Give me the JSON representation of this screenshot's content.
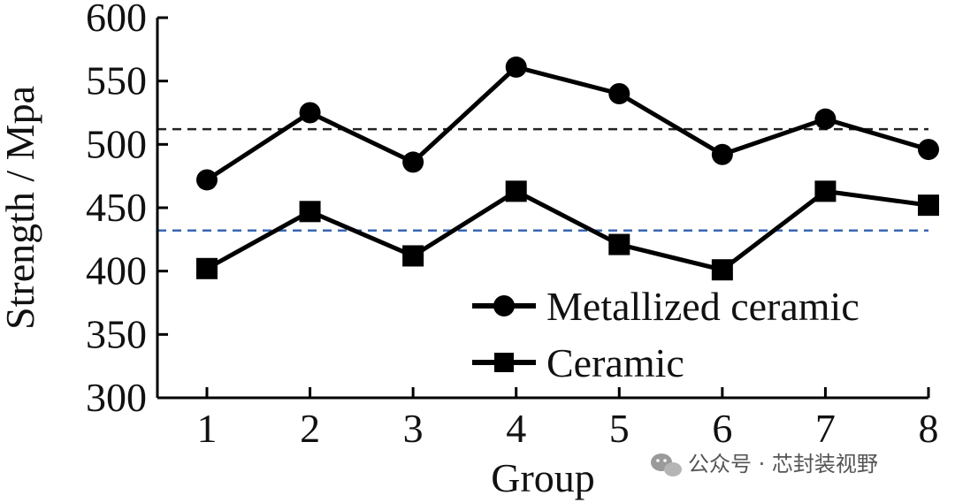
{
  "chart_data": {
    "type": "line",
    "xlabel": "Group",
    "ylabel": "Strength / Mpa",
    "x": [
      1,
      2,
      3,
      4,
      5,
      6,
      7,
      8
    ],
    "ylim": [
      300,
      600
    ],
    "yticks": [
      300,
      350,
      400,
      450,
      500,
      550,
      600
    ],
    "series": [
      {
        "name": "Metallized ceramic",
        "marker": "circle",
        "color": "#000000",
        "values": [
          472,
          525,
          486,
          561,
          540,
          492,
          520,
          496
        ]
      },
      {
        "name": "Ceramic",
        "marker": "square",
        "color": "#000000",
        "values": [
          402,
          447,
          412,
          463,
          421,
          401,
          463,
          452
        ]
      }
    ],
    "reference_lines": [
      {
        "value": 512,
        "color": "#222222",
        "style": "dashed"
      },
      {
        "value": 432,
        "color": "#3a66b0",
        "style": "dashed"
      }
    ],
    "legend_position": "bottom-right",
    "grid": false
  },
  "watermark": {
    "text": "公众号 · 芯封装视野",
    "icon": "wechat-icon"
  }
}
